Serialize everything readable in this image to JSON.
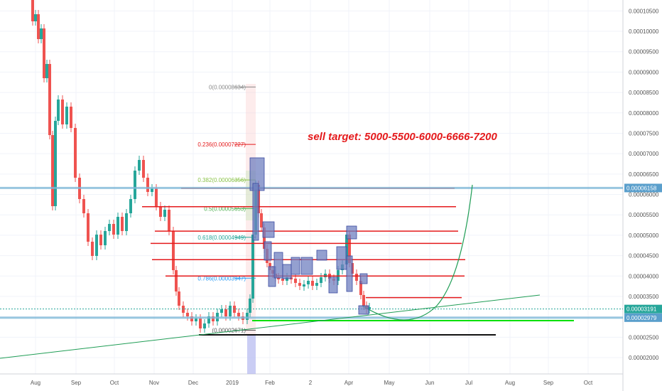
{
  "chart_data": {
    "type": "line",
    "x_tick_labels": [
      "Aug",
      "Sep",
      "Oct",
      "Nov",
      "Dec",
      "2019",
      "Feb",
      "2",
      "Apr",
      "May",
      "Jun",
      "Jul",
      "Aug",
      "Sep",
      "Oct"
    ],
    "y_tick_labels": [
      "0.00010500",
      "0.00010000",
      "0.00009500",
      "0.00009000",
      "0.00008500",
      "0.00008000",
      "0.00007500",
      "0.00007000",
      "0.00006500",
      "0.00006000",
      "0.00005500",
      "0.00005000",
      "0.00004500",
      "0.00004000",
      "0.00003500",
      "0.00003000",
      "0.00002500",
      "0.00002000"
    ],
    "ylim": [
      1.83e-05,
      0.0001075
    ],
    "price_badges": [
      {
        "label": "0.00006158",
        "value": 6.158e-05,
        "color": "#5a9fcc"
      },
      {
        "label": "0.00003191",
        "value": 3.191e-05,
        "color": "#26a69a"
      },
      {
        "label": "0.00002979",
        "value": 2.979e-05,
        "color": "#5a9fcc"
      }
    ],
    "fib_levels": [
      {
        "label": "0(0.00008634)",
        "value": 8.634e-05,
        "color": "#888888"
      },
      {
        "label": "0.236(0.00007227)",
        "value": 7.227e-05,
        "color": "#e41a1c"
      },
      {
        "label": "0.382(0.00006356)",
        "value": 6.356e-05,
        "color": "#8bc34a"
      },
      {
        "label": "0.5(0.00005653)",
        "value": 5.653e-05,
        "color": "#4caf50"
      },
      {
        "label": "0.618(0.00004949)",
        "value": 4.949e-05,
        "color": "#26a69a"
      },
      {
        "label": "0.786(0.00003947)",
        "value": 3.947e-05,
        "color": "#2196f3"
      },
      {
        "label": "(0.00002671)",
        "value": 2.671e-05,
        "color": "#555555"
      }
    ],
    "horizontal_levels": [
      6.15e-05,
      5.7e-05,
      5.1e-05,
      4.8e-05,
      4.4e-05,
      4e-05,
      3.47e-05
    ],
    "annotation": "sell target: 5000-5500-6000-6666-7200",
    "colors": {
      "up": "#26a69a",
      "down": "#ef5350",
      "level": "#e41a1c",
      "support": "#00e000",
      "box": "#7080c0"
    }
  }
}
